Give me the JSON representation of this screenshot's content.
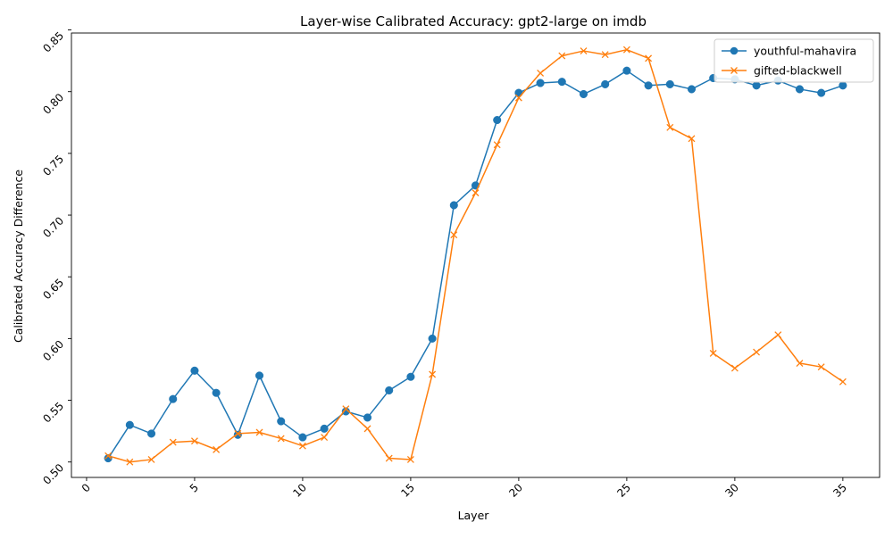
{
  "chart_data": {
    "type": "line",
    "title": "Layer-wise Calibrated Accuracy: gpt2-large on imdb",
    "xlabel": "Layer",
    "ylabel": "Calibrated Accuracy Difference",
    "xlim": [
      -0.7,
      36.7
    ],
    "ylim": [
      0.4875,
      0.8475
    ],
    "xticks": [
      0,
      5,
      10,
      15,
      20,
      25,
      30,
      35
    ],
    "yticks": [
      0.5,
      0.55,
      0.6,
      0.65,
      0.7,
      0.75,
      0.8,
      0.85
    ],
    "ytick_labels": [
      "0.50",
      "0.55",
      "0.60",
      "0.65",
      "0.70",
      "0.75",
      "0.80",
      "0.85"
    ],
    "xtick_rotation": -45,
    "ytick_rotation": -45,
    "legend_position": "top-right",
    "grid": false,
    "x": [
      1,
      2,
      3,
      4,
      5,
      6,
      7,
      8,
      9,
      10,
      11,
      12,
      13,
      14,
      15,
      16,
      17,
      18,
      19,
      20,
      21,
      22,
      23,
      24,
      25,
      26,
      27,
      28,
      29,
      30,
      31,
      32,
      33,
      34,
      35
    ],
    "series": [
      {
        "name": "youthful-mahavira",
        "color": "#1f77b4",
        "marker": "circle",
        "values": [
          0.503,
          0.53,
          0.523,
          0.551,
          0.574,
          0.556,
          0.522,
          0.57,
          0.533,
          0.52,
          0.527,
          0.541,
          0.536,
          0.558,
          0.569,
          0.6,
          0.708,
          0.724,
          0.777,
          0.799,
          0.807,
          0.808,
          0.798,
          0.806,
          0.817,
          0.805,
          0.806,
          0.802,
          0.811,
          0.81,
          0.805,
          0.809,
          0.802,
          0.799,
          0.805
        ]
      },
      {
        "name": "gifted-blackwell",
        "color": "#ff7f0e",
        "marker": "x",
        "values": [
          0.505,
          0.5,
          0.502,
          0.516,
          0.517,
          0.51,
          0.523,
          0.524,
          0.519,
          0.513,
          0.52,
          0.543,
          0.527,
          0.503,
          0.502,
          0.571,
          0.684,
          0.718,
          0.757,
          0.795,
          0.815,
          0.829,
          0.833,
          0.83,
          0.834,
          0.827,
          0.771,
          0.762,
          0.588,
          0.576,
          0.589,
          0.603,
          0.58,
          0.577,
          0.565
        ]
      }
    ]
  }
}
